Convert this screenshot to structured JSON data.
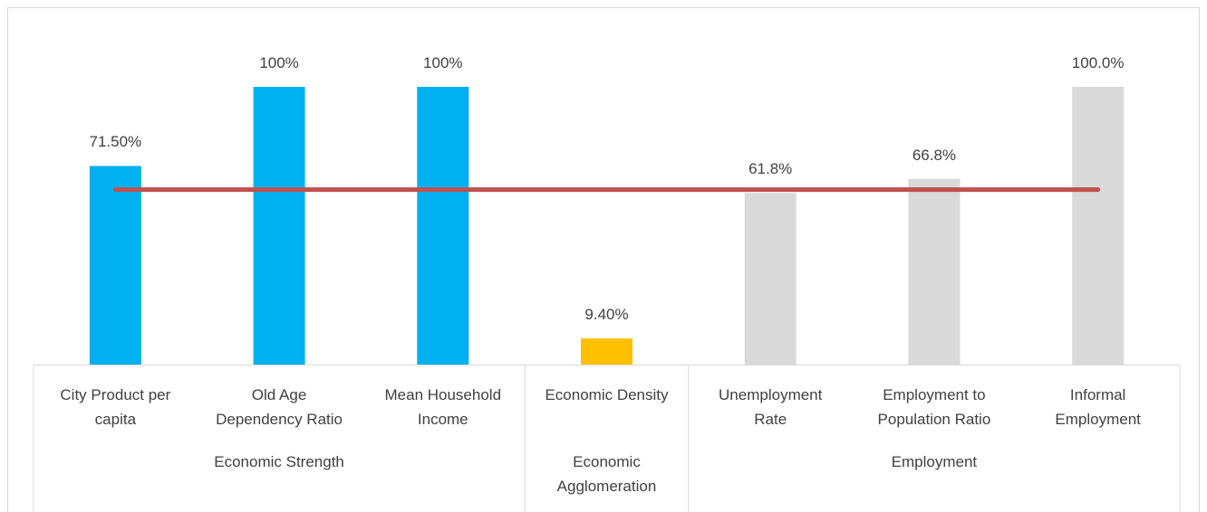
{
  "chart_data": {
    "type": "bar",
    "groups": [
      {
        "name": "Economic Strength",
        "color": "#00b0f0",
        "categories": [
          "City Product per\ncapita",
          "Old Age\nDependency Ratio",
          "Mean Household\nIncome"
        ],
        "values": [
          71.5,
          100,
          100
        ],
        "value_labels": [
          "71.50%",
          "100%",
          "100%"
        ]
      },
      {
        "name": "Economic\nAgglomeration",
        "color": "#ffc000",
        "categories": [
          "Economic Density"
        ],
        "values": [
          9.4
        ],
        "value_labels": [
          "9.40%"
        ]
      },
      {
        "name": "Employment",
        "color": "#d9d9d9",
        "categories": [
          "Unemployment\nRate",
          "Employment to\nPopulation Ratio",
          "Informal\nEmployment"
        ],
        "values": [
          61.8,
          66.8,
          100
        ],
        "value_labels": [
          "61.8%",
          "66.8%",
          "100.0%"
        ]
      }
    ],
    "reference_line": {
      "value": 63,
      "color": "#c0504d"
    },
    "ylim": [
      0,
      100
    ]
  }
}
